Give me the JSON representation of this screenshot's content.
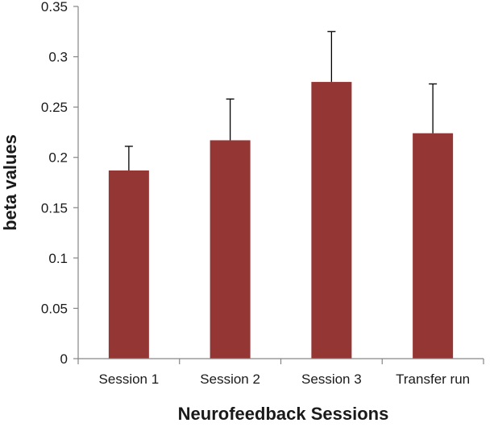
{
  "chart_data": {
    "type": "bar",
    "title": "",
    "xlabel": "Neurofeedback Sessions",
    "ylabel": "beta values",
    "categories": [
      "Session 1",
      "Session 2",
      "Session 3",
      "Transfer run"
    ],
    "values": [
      0.187,
      0.217,
      0.275,
      0.224
    ],
    "error_upper": [
      0.024,
      0.041,
      0.05,
      0.049
    ],
    "ylim": [
      0,
      0.35
    ],
    "yticks": [
      "0",
      "0.05",
      "0.1",
      "0.15",
      "0.2",
      "0.25",
      "0.3",
      "0.35"
    ],
    "grid": false,
    "legend": "none",
    "bar_color": "#943634",
    "axis_color": "#868686"
  }
}
